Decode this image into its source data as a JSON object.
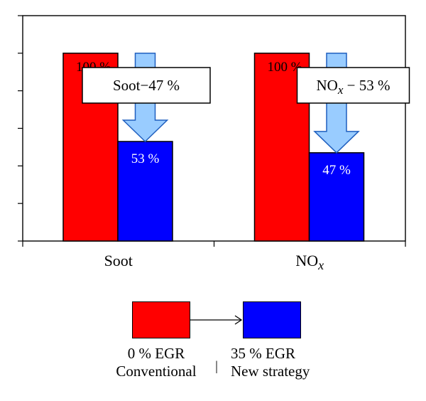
{
  "chart_data": {
    "type": "bar",
    "categories": [
      "Soot",
      "NO"
    ],
    "category_subscripts": [
      "",
      "x"
    ],
    "series": [
      {
        "name": "Conventional",
        "color": "#ff0000",
        "values": [
          100,
          100
        ]
      },
      {
        "name": "New strategy",
        "color": "#0000ff",
        "values": [
          53,
          47
        ]
      }
    ],
    "data_labels": [
      [
        "100 %",
        "100 %"
      ],
      [
        "53 %",
        "47 %"
      ]
    ],
    "reduction_callouts": [
      {
        "prefix": "Soot",
        "sub": "",
        "text": "−47 %"
      },
      {
        "prefix": "NO",
        "sub": "x",
        "text": " − 53 %"
      }
    ],
    "ylim": [
      0,
      120
    ],
    "y_tick_count": 6,
    "arrow_color": "#99ccff",
    "title": "",
    "xlabel": "",
    "ylabel": ""
  },
  "legend": {
    "left_line1": "0 % EGR",
    "left_line2": "Conventional",
    "right_line1": "35 % EGR",
    "right_line2": "New strategy",
    "left_color": "#ff0000",
    "right_color": "#0000ff",
    "separator": "|"
  }
}
